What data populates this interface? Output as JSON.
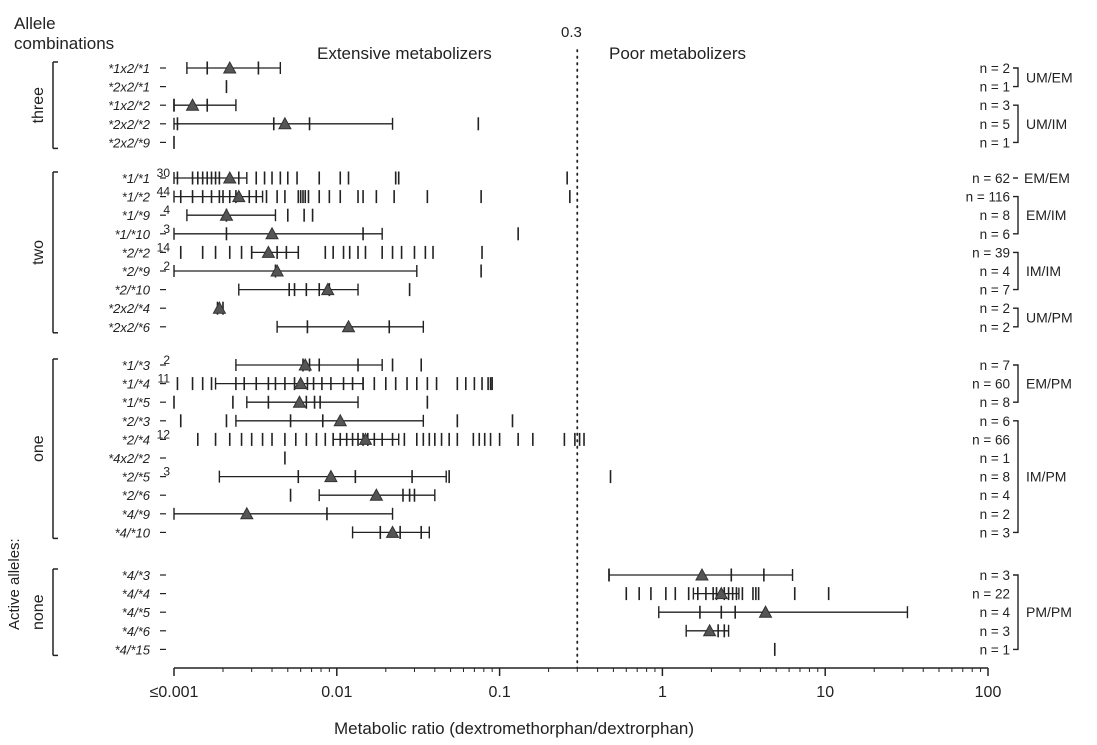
{
  "chart_data": {
    "type": "scatter",
    "title": "",
    "xlabel": "Metabolic ratio (dextromethorphan/dextrorphan)",
    "x_scale": "log",
    "xlim": [
      0.001,
      100
    ],
    "x_tick_labels": [
      "≤0.001",
      "0.01",
      "0.1",
      "1",
      "10",
      "100"
    ],
    "antimode": {
      "value": 0.3,
      "label": "0.3"
    },
    "region_labels": {
      "left": "Extensive metabolizers",
      "right": "Poor metabolizers"
    },
    "y_header": {
      "line1": "Allele",
      "line2": "combinations"
    },
    "active_alleles_label": "Active alleles:",
    "groups": [
      {
        "name": "three",
        "rows": [
          {
            "genotype": "*1x2/*1",
            "n": "n = 2",
            "median": 0.0022,
            "range": [
              0.0012,
              0.0045
            ],
            "points": [
              0.0016,
              0.0033
            ]
          },
          {
            "genotype": "*2x2/*1",
            "n": "n = 1",
            "points": [
              0.0021
            ]
          },
          {
            "genotype": "*1x2/*2",
            "n": "n = 3",
            "median": 0.0013,
            "range": [
              0.001,
              0.0024
            ],
            "points": [
              0.001,
              0.0016
            ]
          },
          {
            "genotype": "*2x2/*2",
            "n": "n = 5",
            "median": 0.0048,
            "range": [
              0.001,
              0.022
            ],
            "points": [
              0.00105,
              0.0041,
              0.0068,
              0.074
            ]
          },
          {
            "genotype": "*2x2/*9",
            "n": "n = 1",
            "points": [
              0.001
            ]
          }
        ]
      },
      {
        "name": "two",
        "rows": [
          {
            "genotype": "*1/*1",
            "n": "n = 62",
            "median": 0.0022,
            "range": [
              0.001,
              0.0028
            ],
            "count_label": "30",
            "points": [
              0.00105,
              0.0013,
              0.0014,
              0.0015,
              0.0016,
              0.0017,
              0.0018,
              0.0019,
              0.0025,
              0.0032,
              0.0036,
              0.004,
              0.0045,
              0.005,
              0.0057,
              0.0078,
              0.0105,
              0.0118,
              0.023,
              0.024,
              0.26
            ]
          },
          {
            "genotype": "*1/*2",
            "n": "n = 116",
            "median": 0.0025,
            "range": [
              0.001,
              0.0035
            ],
            "count_label": "44",
            "points": [
              0.0011,
              0.0013,
              0.0015,
              0.0017,
              0.0019,
              0.002,
              0.0022,
              0.0024,
              0.0029,
              0.0032,
              0.0037,
              0.0043,
              0.0048,
              0.0058,
              0.006,
              0.0062,
              0.0064,
              0.0067,
              0.0078,
              0.009,
              0.0105,
              0.0135,
              0.0145,
              0.0175,
              0.0225,
              0.036,
              0.077,
              0.27
            ]
          },
          {
            "genotype": "*1/*9",
            "n": "n = 8",
            "median": 0.0021,
            "range": [
              0.0012,
              0.0042
            ],
            "count_label": "4",
            "points": [
              0.0021,
              0.005,
              0.0063,
              0.0071
            ]
          },
          {
            "genotype": "*1/*10",
            "n": "n = 6",
            "median": 0.004,
            "range": [
              0.001,
              0.019
            ],
            "count_label": "3",
            "points": [
              0.0021,
              0.0145,
              0.13
            ]
          },
          {
            "genotype": "*2/*2",
            "n": "n = 39",
            "median": 0.0038,
            "range": [
              0.003,
              0.0058
            ],
            "count_label": "14",
            "points": [
              0.0011,
              0.0015,
              0.0018,
              0.0022,
              0.0026,
              0.003,
              0.0043,
              0.0049,
              0.0058,
              0.0085,
              0.0095,
              0.011,
              0.012,
              0.0135,
              0.015,
              0.019,
              0.022,
              0.025,
              0.03,
              0.035,
              0.039,
              0.078
            ]
          },
          {
            "genotype": "*2/*9",
            "n": "n = 4",
            "median": 0.0043,
            "range": [
              0.001,
              0.031
            ],
            "count_label": "2",
            "points": [
              0.0042,
              0.077
            ]
          },
          {
            "genotype": "*2/*10",
            "n": "n = 7",
            "median": 0.0088,
            "range": [
              0.0025,
              0.0135
            ],
            "points": [
              0.0051,
              0.0055,
              0.0065,
              0.0078,
              0.009,
              0.028
            ]
          },
          {
            "genotype": "*2x2/*4",
            "n": "n = 2",
            "median": 0.0019,
            "points": [
              0.00185,
              0.002
            ]
          },
          {
            "genotype": "*2x2/*6",
            "n": "n = 2",
            "median": 0.0118,
            "range": [
              0.0043,
              0.034
            ],
            "points": [
              0.0066,
              0.021
            ]
          }
        ]
      },
      {
        "name": "one",
        "rows": [
          {
            "genotype": "*1/*3",
            "n": "n = 7",
            "median": 0.0064,
            "range": [
              0.0024,
              0.019
            ],
            "count_label": "2",
            "points": [
              0.0062,
              0.0068,
              0.0078,
              0.0135,
              0.022,
              0.033
            ]
          },
          {
            "genotype": "*1/*4",
            "n": "n = 60",
            "median": 0.006,
            "range": [
              0.0018,
              0.0145
            ],
            "count_label": "11",
            "points": [
              0.00105,
              0.0013,
              0.0015,
              0.0017,
              0.0024,
              0.0027,
              0.0032,
              0.0038,
              0.0042,
              0.0048,
              0.0055,
              0.0066,
              0.0072,
              0.0081,
              0.0092,
              0.011,
              0.0125,
              0.0145,
              0.017,
              0.02,
              0.023,
              0.027,
              0.031,
              0.036,
              0.041,
              0.055,
              0.062,
              0.07,
              0.078,
              0.085,
              0.088,
              0.09
            ]
          },
          {
            "genotype": "*1/*5",
            "n": "n = 8",
            "median": 0.0059,
            "range": [
              0.0028,
              0.0135
            ],
            "points": [
              0.001,
              0.0023,
              0.0038,
              0.0065,
              0.0073,
              0.0079,
              0.036
            ]
          },
          {
            "genotype": "*2/*3",
            "n": "n = 6",
            "median": 0.0105,
            "range": [
              0.0024,
              0.034
            ],
            "points": [
              0.0011,
              0.0021,
              0.0052,
              0.0082,
              0.055,
              0.12
            ]
          },
          {
            "genotype": "*2/*4",
            "n": "n = 66",
            "median": 0.015,
            "range": [
              0.0095,
              0.024
            ],
            "count_label": "12",
            "points": [
              0.0014,
              0.0018,
              0.0022,
              0.0026,
              0.003,
              0.0035,
              0.004,
              0.0048,
              0.0056,
              0.0065,
              0.0075,
              0.0085,
              0.0095,
              0.0105,
              0.0115,
              0.0125,
              0.0135,
              0.0145,
              0.0155,
              0.017,
              0.019,
              0.022,
              0.026,
              0.031,
              0.034,
              0.037,
              0.04,
              0.044,
              0.049,
              0.055,
              0.069,
              0.075,
              0.081,
              0.088,
              0.1,
              0.13,
              0.16,
              0.25,
              0.29,
              0.31,
              0.33
            ]
          },
          {
            "genotype": "*4x2/*2",
            "n": "n = 1",
            "points": [
              0.0048
            ]
          },
          {
            "genotype": "*2/*5",
            "n": "n = 8",
            "median": 0.0092,
            "range": [
              0.0019,
              0.047
            ],
            "count_label": "3",
            "points": [
              0.0058,
              0.013,
              0.029,
              0.049,
              0.48
            ]
          },
          {
            "genotype": "*2/*6",
            "n": "n = 4",
            "median": 0.0175,
            "range": [
              0.0078,
              0.04
            ],
            "points": [
              0.0052,
              0.0255,
              0.028,
              0.03
            ]
          },
          {
            "genotype": "*4/*9",
            "n": "n = 2",
            "median": 0.0028,
            "range": [
              0.001,
              0.022
            ],
            "points": [
              0.0087
            ]
          },
          {
            "genotype": "*4/*10",
            "n": "n = 3",
            "median": 0.022,
            "range": [
              0.0125,
              0.037
            ],
            "points": [
              0.0185,
              0.0245,
              0.033
            ]
          }
        ]
      },
      {
        "name": "none",
        "rows": [
          {
            "genotype": "*4/*3",
            "n": "n = 3",
            "median": 1.75,
            "range": [
              0.47,
              6.3
            ],
            "points": [
              0.47,
              2.65,
              4.2
            ]
          },
          {
            "genotype": "*4/*4",
            "n": "n = 22",
            "median": 2.3,
            "range": [
              1.55,
              2.95
            ],
            "points": [
              0.6,
              0.72,
              0.85,
              1.05,
              1.2,
              1.45,
              1.65,
              1.85,
              2.05,
              2.15,
              2.4,
              2.55,
              2.7,
              2.85,
              3.1,
              3.6,
              3.75,
              3.9,
              6.5,
              10.5
            ]
          },
          {
            "genotype": "*4/*5",
            "n": "n = 4",
            "median": 4.3,
            "range": [
              0.95,
              32
            ],
            "points": [
              1.7,
              2.3,
              2.8
            ]
          },
          {
            "genotype": "*4/*6",
            "n": "n = 3",
            "median": 1.95,
            "range": [
              1.4,
              2.55
            ],
            "points": [
              2.2,
              2.4
            ]
          },
          {
            "genotype": "*4/*15",
            "n": "n = 1",
            "points": [
              4.9
            ]
          }
        ]
      }
    ],
    "phenotype_brackets": [
      {
        "label": "UM/EM",
        "rows": [
          "*1x2/*1",
          "*2x2/*1"
        ]
      },
      {
        "label": "UM/IM",
        "rows": [
          "*1x2/*2",
          "*2x2/*9"
        ]
      },
      {
        "label": "EM/EM",
        "rows": [
          "*1/*1"
        ]
      },
      {
        "label": "EM/IM",
        "rows": [
          "*1/*2",
          "*1/*10"
        ]
      },
      {
        "label": "IM/IM",
        "rows": [
          "*2/*2",
          "*2/*10"
        ]
      },
      {
        "label": "UM/PM",
        "rows": [
          "*2x2/*4",
          "*2x2/*6"
        ]
      },
      {
        "label": "EM/PM",
        "rows": [
          "*1/*3",
          "*1/*5"
        ]
      },
      {
        "label": "IM/PM",
        "rows": [
          "*2/*3",
          "*4/*10"
        ]
      },
      {
        "label": "PM/PM",
        "rows": [
          "*4/*3",
          "*4/*15"
        ]
      }
    ]
  }
}
